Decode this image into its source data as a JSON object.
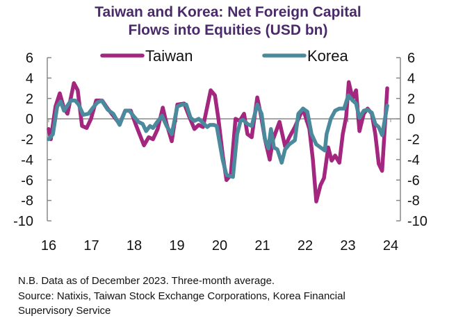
{
  "chart_data": {
    "type": "line",
    "title": "Taiwan and Korea: Net Foreign Capital Flows into Equities (USD bn)",
    "title_lines": [
      "Taiwan and Korea: Net Foreign Capital",
      "Flows into Equities (USD bn)"
    ],
    "xlabel": "",
    "ylabel": "",
    "x_ticks": [
      "16",
      "17",
      "18",
      "19",
      "20",
      "21",
      "22",
      "23",
      "24"
    ],
    "x_tick_values": [
      2016,
      2017,
      2018,
      2019,
      2020,
      2021,
      2022,
      2023,
      2024
    ],
    "y_ticks": [
      6,
      4,
      2,
      0,
      -2,
      -4,
      -6,
      -8,
      -10
    ],
    "ylim": [
      -10,
      6
    ],
    "xlim": [
      2016,
      2024
    ],
    "grid": false,
    "legend_position": "top",
    "series": [
      {
        "name": "Taiwan",
        "color": "#a3267f",
        "points": [
          [
            2016.0,
            -1
          ],
          [
            2016.05,
            -2
          ],
          [
            2016.16,
            1.2
          ],
          [
            2016.26,
            2.5
          ],
          [
            2016.36,
            1
          ],
          [
            2016.44,
            0.5
          ],
          [
            2016.59,
            3.5
          ],
          [
            2016.68,
            2.8
          ],
          [
            2016.78,
            -0.7
          ],
          [
            2016.89,
            -0.9
          ],
          [
            2016.99,
            0
          ],
          [
            2017.11,
            1.8
          ],
          [
            2017.25,
            1.8
          ],
          [
            2017.38,
            1
          ],
          [
            2017.51,
            0.3
          ],
          [
            2017.66,
            -0.5
          ],
          [
            2017.79,
            0.8
          ],
          [
            2017.92,
            0.8
          ],
          [
            2018.05,
            -0.7
          ],
          [
            2018.23,
            -2.6
          ],
          [
            2018.34,
            -1.8
          ],
          [
            2018.44,
            -2
          ],
          [
            2018.55,
            -1
          ],
          [
            2018.67,
            1.1
          ],
          [
            2018.76,
            -0.5
          ],
          [
            2018.88,
            -2.2
          ],
          [
            2019.01,
            1.4
          ],
          [
            2019.17,
            1.5
          ],
          [
            2019.28,
            0.3
          ],
          [
            2019.41,
            -1
          ],
          [
            2019.51,
            -0.6
          ],
          [
            2019.61,
            -0.8
          ],
          [
            2019.79,
            2.8
          ],
          [
            2019.89,
            2.3
          ],
          [
            2019.97,
            0
          ],
          [
            2020.07,
            -3.5
          ],
          [
            2020.16,
            -6
          ],
          [
            2020.26,
            -5.5
          ],
          [
            2020.37,
            0
          ],
          [
            2020.47,
            -0.2
          ],
          [
            2020.57,
            0.5
          ],
          [
            2020.65,
            -1.5
          ],
          [
            2020.75,
            -1.8
          ],
          [
            2020.88,
            2.1
          ],
          [
            2020.96,
            0.5
          ],
          [
            2021.06,
            -2
          ],
          [
            2021.17,
            -4
          ],
          [
            2021.25,
            -2
          ],
          [
            2021.4,
            -0.3
          ],
          [
            2021.53,
            -2.7
          ],
          [
            2021.63,
            -1.8
          ],
          [
            2021.76,
            -0.8
          ],
          [
            2021.95,
            1
          ],
          [
            2022.1,
            -1
          ],
          [
            2022.18,
            -4
          ],
          [
            2022.26,
            -8.1
          ],
          [
            2022.36,
            -6.5
          ],
          [
            2022.44,
            -5.8
          ],
          [
            2022.54,
            -2.8
          ],
          [
            2022.62,
            -4.1
          ],
          [
            2022.7,
            -3.6
          ],
          [
            2022.8,
            -4.3
          ],
          [
            2022.88,
            -1.5
          ],
          [
            2022.96,
            0.2
          ],
          [
            2023.02,
            3.6
          ],
          [
            2023.11,
            2
          ],
          [
            2023.19,
            2.8
          ],
          [
            2023.27,
            -1.2
          ],
          [
            2023.37,
            0.5
          ],
          [
            2023.46,
            1
          ],
          [
            2023.56,
            0.5
          ],
          [
            2023.64,
            -1.5
          ],
          [
            2023.72,
            -4.4
          ],
          [
            2023.8,
            -5.1
          ],
          [
            2023.92,
            3
          ]
        ]
      },
      {
        "name": "Korea",
        "color": "#4a8a9c",
        "points": [
          [
            2016.0,
            -2
          ],
          [
            2016.1,
            -1.5
          ],
          [
            2016.2,
            1.2
          ],
          [
            2016.28,
            1.7
          ],
          [
            2016.36,
            0.8
          ],
          [
            2016.44,
            1.3
          ],
          [
            2016.52,
            1.8
          ],
          [
            2016.62,
            1.8
          ],
          [
            2016.7,
            1.4
          ],
          [
            2016.81,
            0.4
          ],
          [
            2016.93,
            0.5
          ],
          [
            2017.02,
            1
          ],
          [
            2017.14,
            1.6
          ],
          [
            2017.24,
            1.8
          ],
          [
            2017.38,
            0.9
          ],
          [
            2017.51,
            0.5
          ],
          [
            2017.66,
            -0.6
          ],
          [
            2017.79,
            0.8
          ],
          [
            2017.89,
            0.8
          ],
          [
            2018.0,
            0.2
          ],
          [
            2018.1,
            -0.3
          ],
          [
            2018.2,
            -0.5
          ],
          [
            2018.28,
            -1.2
          ],
          [
            2018.37,
            -0.7
          ],
          [
            2018.44,
            -0.9
          ],
          [
            2018.54,
            -0.3
          ],
          [
            2018.65,
            0.3
          ],
          [
            2018.76,
            -0.7
          ],
          [
            2018.88,
            -1.5
          ],
          [
            2019.01,
            1.2
          ],
          [
            2019.12,
            1.4
          ],
          [
            2019.22,
            1.4
          ],
          [
            2019.32,
            0.1
          ],
          [
            2019.41,
            -0.2
          ],
          [
            2019.51,
            0
          ],
          [
            2019.61,
            -0.4
          ],
          [
            2019.71,
            -0.8
          ],
          [
            2019.77,
            -0.6
          ],
          [
            2019.87,
            -0.6
          ],
          [
            2019.93,
            -0.7
          ],
          [
            2020.07,
            -4
          ],
          [
            2020.16,
            -5.5
          ],
          [
            2020.31,
            -5.7
          ],
          [
            2020.41,
            -1.5
          ],
          [
            2020.49,
            -0.2
          ],
          [
            2020.55,
            -0.1
          ],
          [
            2020.65,
            -0.5
          ],
          [
            2020.75,
            -0.7
          ],
          [
            2020.88,
            1.4
          ],
          [
            2020.98,
            0.5
          ],
          [
            2021.06,
            -2
          ],
          [
            2021.14,
            -2.9
          ],
          [
            2021.2,
            -1
          ],
          [
            2021.27,
            -2.8
          ],
          [
            2021.35,
            -3
          ],
          [
            2021.45,
            -4.3
          ],
          [
            2021.53,
            -3
          ],
          [
            2021.63,
            -2.5
          ],
          [
            2021.76,
            -2.1
          ],
          [
            2021.84,
            0.5
          ],
          [
            2021.95,
            1
          ],
          [
            2022.05,
            0.7
          ],
          [
            2022.15,
            -1.5
          ],
          [
            2022.26,
            -2.5
          ],
          [
            2022.36,
            -2.8
          ],
          [
            2022.46,
            -3.1
          ],
          [
            2022.5,
            -1.5
          ],
          [
            2022.6,
            0
          ],
          [
            2022.7,
            0.8
          ],
          [
            2022.8,
            1
          ],
          [
            2022.91,
            1
          ],
          [
            2023.01,
            2.3
          ],
          [
            2023.11,
            1.8
          ],
          [
            2023.19,
            1.5
          ],
          [
            2023.27,
            0.1
          ],
          [
            2023.37,
            0.8
          ],
          [
            2023.46,
            0.9
          ],
          [
            2023.56,
            0.6
          ],
          [
            2023.64,
            -0.5
          ],
          [
            2023.72,
            -0.8
          ],
          [
            2023.8,
            -1.6
          ],
          [
            2023.92,
            1.3
          ]
        ]
      }
    ]
  },
  "notes": [
    "N.B. Data as of December 2023. Three-month average.",
    "Source: Natixis, Taiwan Stock Exchange Corporations, Korea Financial",
    "Supervisory Service"
  ]
}
